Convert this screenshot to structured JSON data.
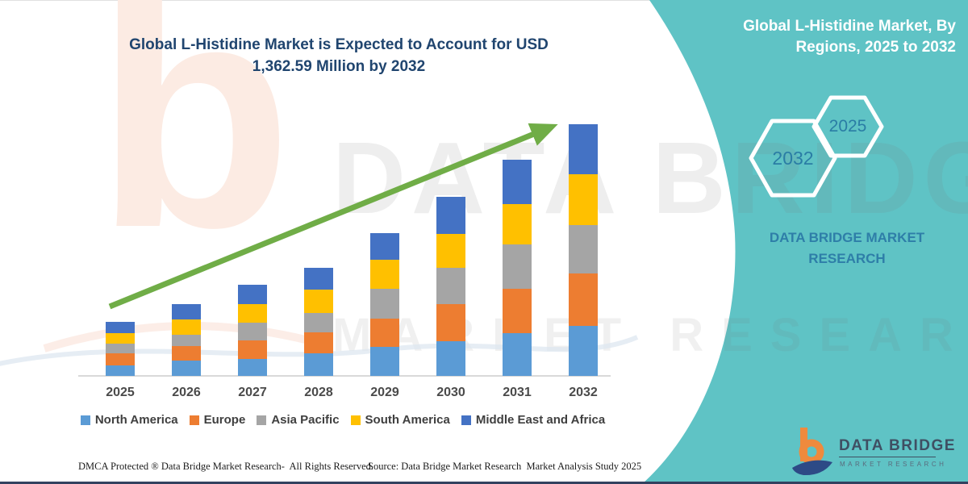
{
  "header": {
    "title_line1": "Global L-Histidine Market is Expected to Account for USD",
    "title_line2": "1,362.59 Million by 2032"
  },
  "panel": {
    "heading": "Global L-Histidine Market, By Regions, 2025 to 2032",
    "hexagons": [
      {
        "label": "2032"
      },
      {
        "label": "2025"
      }
    ],
    "brand_line1": "DATA BRIDGE MARKET",
    "brand_line2": "RESEARCH",
    "bg_color": "#5fc3c5"
  },
  "watermark": {
    "letter": "b",
    "line1": "DATA BRIDGE",
    "line2": "MARKET RESEARCH"
  },
  "logo": {
    "name": "DATA BRIDGE",
    "sub": "MARKET RESEARCH"
  },
  "footer": {
    "left": "DMCA Protected ® Data Bridge Market Research-  All Rights Reserved.",
    "source": "Source: Data Bridge Market Research  Market Analysis Study 2025"
  },
  "chart_data": {
    "type": "bar",
    "stacked": true,
    "title": "Global L-Histidine Market, By Regions, 2025 to 2032",
    "unit": "USD Million",
    "total_2032_label": "1,362.59",
    "categories": [
      "2025",
      "2026",
      "2027",
      "2028",
      "2029",
      "2030",
      "2031",
      "2032"
    ],
    "series": [
      {
        "name": "North America",
        "color": "#5B9BD5",
        "values": [
          57,
          83,
          92,
          122,
          157,
          188,
          231,
          271
        ]
      },
      {
        "name": "Europe",
        "color": "#ED7D31",
        "values": [
          66,
          79,
          100,
          114,
          153,
          201,
          240,
          284
        ]
      },
      {
        "name": "Asia Pacific",
        "color": "#A5A5A5",
        "values": [
          52,
          61,
          96,
          105,
          162,
          197,
          240,
          262
        ]
      },
      {
        "name": "South America",
        "color": "#FFC000",
        "values": [
          57,
          83,
          100,
          127,
          157,
          183,
          218,
          275
        ]
      },
      {
        "name": "Middle East and Africa",
        "color": "#4472C4",
        "values": [
          61,
          83,
          105,
          118,
          144,
          201,
          240,
          270.59
        ]
      }
    ],
    "totals": [
      293,
      389,
      493,
      586,
      773,
      970,
      1169,
      1362.59
    ],
    "trend_arrow": true,
    "trend_arrow_color": "#70AD47",
    "axis": {
      "baseline_color": "#d9d9d9",
      "grid": false
    },
    "legend_position": "bottom"
  }
}
